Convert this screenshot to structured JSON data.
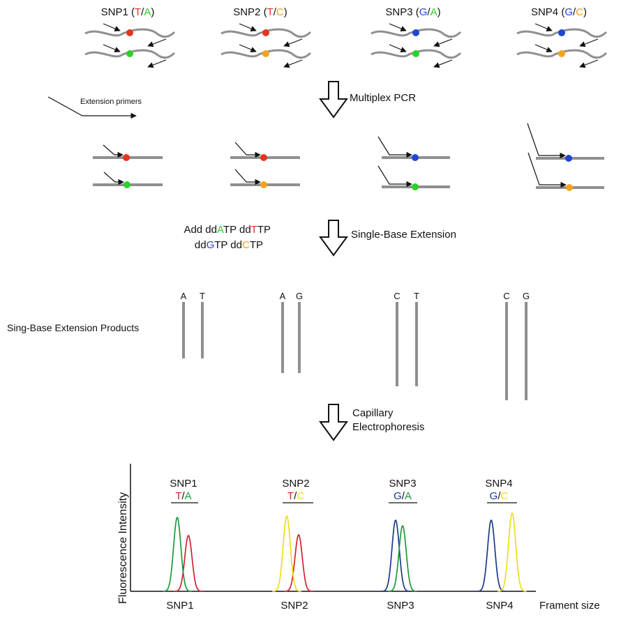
{
  "colors": {
    "T": "#e8331f",
    "A": "#2bd12b",
    "G": "#1f45d6",
    "C": "#f4a21c",
    "line": "#8f8f8f",
    "peak_green": "#1a9a3a",
    "peak_red": "#d42030",
    "peak_yellow": "#f2dc1a",
    "peak_blue": "#1c3a8c"
  },
  "snps": [
    {
      "name": "SNP1",
      "a1": "T",
      "a2": "A",
      "label": "SNP1 (T/A)"
    },
    {
      "name": "SNP2",
      "a1": "T",
      "a2": "C",
      "label": "SNP2 (T/C)"
    },
    {
      "name": "SNP3",
      "a1": "G",
      "a2": "A",
      "label": "SNP3 (G/A)"
    },
    {
      "name": "SNP4",
      "a1": "G",
      "a2": "C",
      "label": "SNP4 (G/C)"
    }
  ],
  "steps": {
    "step1": "Multiplex PCR",
    "step2": "Single-Base Extension",
    "step3_line1": "Capillary",
    "step3_line2": "Electrophoresis"
  },
  "extension_primers_label": "Extension primers",
  "reagents": {
    "line1": [
      "Add dd",
      "A",
      "TP dd",
      "T",
      "TP"
    ],
    "line2": [
      "dd",
      "G",
      "TP dd",
      "C",
      "TP"
    ]
  },
  "products_label": "Sing-Base Extension Products",
  "products": [
    {
      "snp": "SNP1",
      "bases": [
        "A",
        "T"
      ]
    },
    {
      "snp": "SNP2",
      "bases": [
        "A",
        "G"
      ]
    },
    {
      "snp": "SNP3",
      "bases": [
        "C",
        "T"
      ]
    },
    {
      "snp": "SNP4",
      "bases": [
        "C",
        "G"
      ]
    }
  ],
  "electropherogram": {
    "y_axis_label": "Fluorescence Intensity",
    "x_axis_label": "Frament size",
    "groups": [
      {
        "name": "SNP1",
        "label_top": "SNP1",
        "a1": "T",
        "a2": "A",
        "x_label": "SNP1"
      },
      {
        "name": "SNP2",
        "label_top": "SNP2",
        "a1": "T",
        "a2": "C",
        "x_label": "SNP2"
      },
      {
        "name": "SNP3",
        "label_top": "SNP3",
        "a1": "G",
        "a2": "A",
        "x_label": "SNP3"
      },
      {
        "name": "SNP4",
        "label_top": "SNP4",
        "a1": "G",
        "a2": "C",
        "x_label": "SNP4"
      }
    ]
  }
}
